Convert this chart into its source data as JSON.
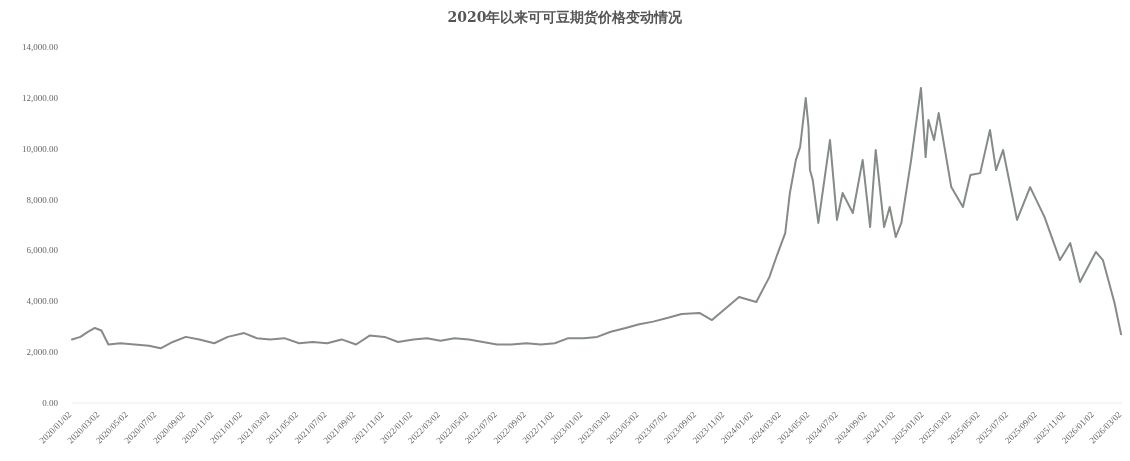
{
  "chart_data": {
    "type": "line",
    "title": "2020年以来可可豆期货价格变动情况",
    "xlim": [
      "2020-01-02",
      "2026-03-02"
    ],
    "xticks": [
      {
        "value": "2020-01-02",
        "label": "2020/01/02"
      },
      {
        "value": "2020-03-02",
        "label": "2020/03/02"
      },
      {
        "value": "2020-05-02",
        "label": "2020/05/02"
      },
      {
        "value": "2020-07-02",
        "label": "2020/07/02"
      },
      {
        "value": "2020-09-02",
        "label": "2020/09/02"
      },
      {
        "value": "2020-11-02",
        "label": "2020/11/02"
      },
      {
        "value": "2021-01-02",
        "label": "2021/01/02"
      },
      {
        "value": "2021-03-02",
        "label": "2021/03/02"
      },
      {
        "value": "2021-05-02",
        "label": "2021/05/02"
      },
      {
        "value": "2021-07-02",
        "label": "2021/07/02"
      },
      {
        "value": "2021-09-02",
        "label": "2021/09/02"
      },
      {
        "value": "2021-11-02",
        "label": "2021/11/02"
      },
      {
        "value": "2022-01-02",
        "label": "2022/01/02"
      },
      {
        "value": "2022-03-02",
        "label": "2022/03/02"
      },
      {
        "value": "2022-05-02",
        "label": "2022/05/02"
      },
      {
        "value": "2022-07-02",
        "label": "2022/07/02"
      },
      {
        "value": "2022-09-02",
        "label": "2022/09/02"
      },
      {
        "value": "2022-11-02",
        "label": "2022/11/02"
      },
      {
        "value": "2023-01-02",
        "label": "2023/01/02"
      },
      {
        "value": "2023-03-02",
        "label": "2023/03/02"
      },
      {
        "value": "2023-05-02",
        "label": "2023/05/02"
      },
      {
        "value": "2023-07-02",
        "label": "2023/07/02"
      },
      {
        "value": "2023-09-02",
        "label": "2023/09/02"
      },
      {
        "value": "2023-11-02",
        "label": "2023/11/02"
      },
      {
        "value": "2024-01-02",
        "label": "2024/01/02"
      },
      {
        "value": "2024-03-02",
        "label": "2024/03/02"
      },
      {
        "value": "2024-05-02",
        "label": "2024/05/02"
      },
      {
        "value": "2024-07-02",
        "label": "2024/07/02"
      },
      {
        "value": "2024-09-02",
        "label": "2024/09/02"
      },
      {
        "value": "2024-11-02",
        "label": "2024/11/02"
      },
      {
        "value": "2025-01-02",
        "label": "2025/01/02"
      },
      {
        "value": "2025-03-02",
        "label": "2025/03/02"
      },
      {
        "value": "2025-05-02",
        "label": "2025/05/02"
      },
      {
        "value": "2025-07-02",
        "label": "2025/07/02"
      },
      {
        "value": "2025-09-02",
        "label": "2025/09/02"
      },
      {
        "value": "2025-11-02",
        "label": "2025/11/02"
      },
      {
        "value": "2026-01-02",
        "label": "2026/01/02"
      },
      {
        "value": "2026-03-02",
        "label": "2026/03/02"
      }
    ],
    "ylim": [
      0,
      14000
    ],
    "yticks": [
      {
        "value": 0,
        "label": "0.00"
      },
      {
        "value": 2000,
        "label": "2,000.00"
      },
      {
        "value": 4000,
        "label": "4,000.00"
      },
      {
        "value": 6000,
        "label": "6,000.00"
      },
      {
        "value": 8000,
        "label": "8,000.00"
      },
      {
        "value": 10000,
        "label": "10,000.00"
      },
      {
        "value": 12000,
        "label": "12,000.00"
      },
      {
        "value": 14000,
        "label": "14,000.00"
      }
    ],
    "series": [
      {
        "color": "#858b86",
        "x": [
          "2020-01-02",
          "2020-01-20",
          "2020-02-05",
          "2020-02-20",
          "2020-03-05",
          "2020-03-20",
          "2020-04-15",
          "2020-05-15",
          "2020-06-15",
          "2020-07-10",
          "2020-08-05",
          "2020-09-02",
          "2020-10-01",
          "2020-11-02",
          "2020-12-01",
          "2021-01-05",
          "2021-02-01",
          "2021-03-02",
          "2021-04-01",
          "2021-05-03",
          "2021-06-01",
          "2021-07-02",
          "2021-08-02",
          "2021-09-02",
          "2021-10-01",
          "2021-11-02",
          "2021-12-01",
          "2022-01-03",
          "2022-02-01",
          "2022-03-02",
          "2022-04-01",
          "2022-05-02",
          "2022-06-01",
          "2022-07-01",
          "2022-08-01",
          "2022-09-02",
          "2022-10-03",
          "2022-11-02",
          "2022-12-01",
          "2023-01-03",
          "2023-02-01",
          "2023-03-02",
          "2023-04-03",
          "2023-05-02",
          "2023-06-01",
          "2023-07-03",
          "2023-08-01",
          "2023-09-08",
          "2023-10-05",
          "2023-11-15",
          "2023-12-02",
          "2024-01-08",
          "2024-02-05",
          "2024-02-20",
          "2024-03-10",
          "2024-03-20",
          "2024-04-02",
          "2024-04-11",
          "2024-04-23",
          "2024-04-29",
          "2024-05-02",
          "2024-05-08",
          "2024-05-20",
          "2024-06-08",
          "2024-06-14",
          "2024-06-29",
          "2024-07-11",
          "2024-08-02",
          "2024-08-23",
          "2024-09-08",
          "2024-09-20",
          "2024-10-08",
          "2024-10-20",
          "2024-11-02",
          "2024-11-14",
          "2024-12-05",
          "2024-12-26",
          "2025-01-05",
          "2025-01-11",
          "2025-01-23",
          "2025-02-02",
          "2025-03-01",
          "2025-03-26",
          "2025-04-11",
          "2025-05-02",
          "2025-05-23",
          "2025-06-05",
          "2025-06-20",
          "2025-07-20",
          "2025-08-17",
          "2025-09-17",
          "2025-10-20",
          "2025-11-11",
          "2025-12-02",
          "2026-01-05",
          "2026-01-20",
          "2026-02-14",
          "2026-02-28"
        ],
        "values": [
          2500,
          2600,
          2800,
          2950,
          2850,
          2300,
          2350,
          2300,
          2250,
          2150,
          2400,
          2600,
          2500,
          2350,
          2600,
          2750,
          2550,
          2500,
          2550,
          2350,
          2400,
          2350,
          2500,
          2300,
          2650,
          2600,
          2400,
          2500,
          2550,
          2450,
          2550,
          2500,
          2400,
          2300,
          2300,
          2350,
          2300,
          2350,
          2550,
          2550,
          2600,
          2800,
          2950,
          3100,
          3200,
          3350,
          3500,
          3540,
          3260,
          3900,
          4170,
          3970,
          4950,
          5740,
          6680,
          8260,
          9560,
          10070,
          11990,
          10850,
          9160,
          8770,
          7080,
          9560,
          10340,
          7200,
          8260,
          7470,
          9560,
          6920,
          9950,
          6920,
          7710,
          6530,
          7080,
          9560,
          12390,
          9670,
          11130,
          10340,
          11400,
          8490,
          7710,
          8970,
          9040,
          10740,
          9160,
          9950,
          7200,
          8490,
          7310,
          5620,
          6290,
          4760,
          5940,
          5620,
          3930,
          2700
        ]
      }
    ]
  }
}
